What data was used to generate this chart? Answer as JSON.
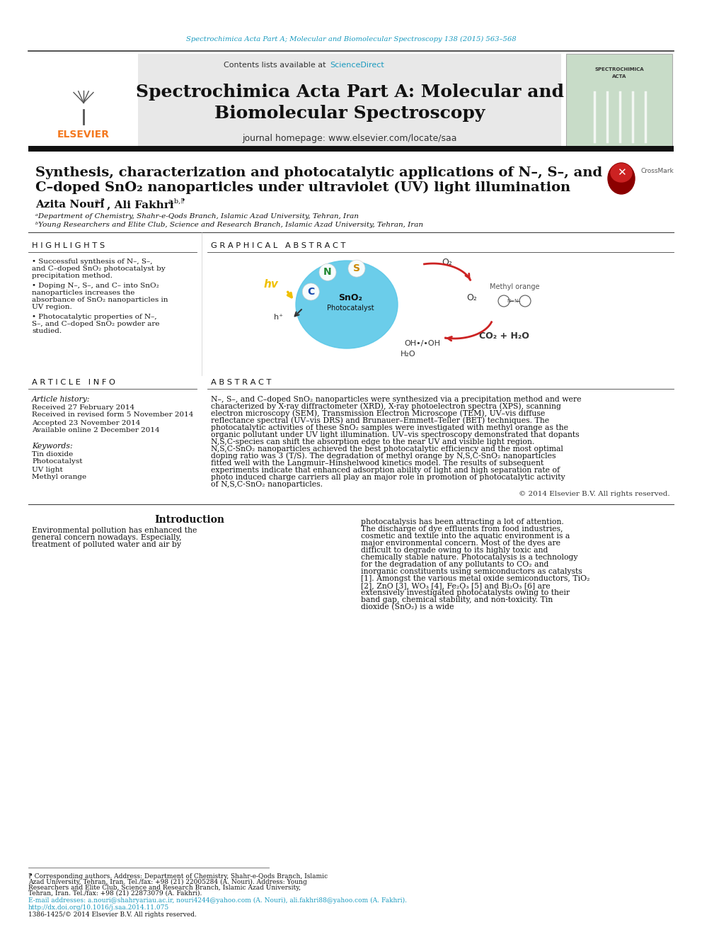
{
  "page_bg": "#ffffff",
  "top_journal_line": "Spectrochimica Acta Part A; Molecular and Biomolecular Spectroscopy 138 (2015) 563–568",
  "top_journal_color": "#1a9abf",
  "journal_header_bg": "#e8e8e8",
  "journal_title": "Spectrochimica Acta Part A: Molecular and\nBiomolecular Spectroscopy",
  "contents_line": "Contents lists available at ",
  "sciencedirect_text": "ScienceDirect",
  "sciencedirect_color": "#1a9abf",
  "journal_homepage": "journal homepage: www.elsevier.com/locate/saa",
  "elsevier_color": "#f47920",
  "paper_title_line1": "Synthesis, characterization and photocatalytic applications of N–, S–, and",
  "paper_title_line2": "C–doped SnO₂ nanoparticles under ultraviolet (UV) light illumination",
  "author1": "Azita Nouri",
  "author1_super": "a,⁋",
  "author2": ", Ali Fakhri",
  "author2_super": "a,b,⁋",
  "affil_a": "ᵃDepartment of Chemistry, Shahr-e-Qods Branch, Islamic Azad University, Tehran, Iran",
  "affil_b": "ᵇYoung Researchers and Elite Club, Science and Research Branch, Islamic Azad University, Tehran, Iran",
  "section_highlights": "H I G H L I G H T S",
  "section_graphical": "G R A P H I C A L   A B S T R A C T",
  "highlight1": "• Successful synthesis of N–, S–, and C–doped SnO₂ photocatalyst by precipitation method.",
  "highlight2": "• Doping N–, S–, and C– into SnO₂ nanoparticles increases the absorbance of SnO₂ nanoparticles in UV region.",
  "highlight3": "• Photocatalytic properties of N–, S–, and C–doped SnO₂ powder are studied.",
  "article_info_title": "A R T I C L E   I N F O",
  "article_history": "Article history:",
  "received": "Received 27 February 2014",
  "revised": "Received in revised form 5 November 2014",
  "accepted": "Accepted 23 November 2014",
  "available": "Available online 2 December 2014",
  "keywords_title": "Keywords:",
  "kw1": "Tin dioxide",
  "kw2": "Photocatalyst",
  "kw3": "UV light",
  "kw4": "Methyl orange",
  "abstract_title": "A B S T R A C T",
  "abstract_text": "N–, S–, and C–doped SnO₂ nanoparticles were synthesized via a precipitation method and were characterized by X-ray diffractometer (XRD), X-ray photoelectron spectra (XPS), scanning electron microscopy (SEM), Transmission Electron Microscope (TEM), UV–vis diffuse reflectance spectral (UV–vis DRS) and Brunauer–Emmett–Teller (BET) techniques. The photocatalytic activities of these SnO₂ samples were investigated with methyl orange as the organic pollutant under UV light illumination. UV–vis spectroscopy demonstrated that dopants N,S,C-species can shift the absorption edge to the near UV and visible light region. N,S,C-SnO₂ nanoparticles achieved the best photocatalytic efficiency and the most optimal doping ratio was 3 (T/S). The degradation of methyl orange by N,S,C-SnO₂ nanoparticles fitted well with the Langmuir–Hinshelwood kinetics model. The results of subsequent experiments indicate that enhanced adsorption ability of light and high separation rate of photo induced charge carriers all play an major role in promotion of photocatalytic activity of N,S,C-SnO₂ nanoparticles.",
  "copyright_text": "© 2014 Elsevier B.V. All rights reserved.",
  "intro_title": "Introduction",
  "intro_left": "    Environmental pollution has enhanced the general concern nowadays. Especially, treatment of polluted water and air by",
  "intro_right": "photocatalysis has been attracting a lot of attention. The discharge of dye effluents from food industries, cosmetic and textile into the aquatic environment is a major environmental concern. Most of the dyes are difficult to degrade owing to its highly toxic and chemically stable nature. Photocatalysis is a technology for the degradation of any pollutants to CO₂ and inorganic constituents using semiconductors as catalysts [1]. Amongst the various metal oxide semiconductors, TiO₂ [2], ZnO [3], WO₃ [4], Fe₂O₃ [5] and Bi₂O₃ [6] are extensively investigated photocatalysts owing to their band gap, chemical stability, and non-toxicity. Tin dioxide (SnO₂) is a wide",
  "footnote_star": "⁋ Corresponding authors. Address: Department of Chemistry, Shahr-e-Qods Branch, Islamic Azad University, Tehran, Iran. Tel./fax: +98 (21) 22005284 (A. Nouri). Address: Young Researchers and Elite Club, Science and Research Branch, Islamic Azad University, Tehran, Iran. Tel./fax: +98 (21) 22873079 (A. Fakhri).",
  "email_line": "E-mail addresses: a.nouri@shahryariau.ac.ir, nouri4244@yahoo.com (A. Nouri), ali.fakhri88@yahoo.com (A. Fakhri).",
  "doi_line": "http://dx.doi.org/10.1016/j.saa.2014.11.075",
  "issn_line": "1386-1425/© 2014 Elsevier B.V. All rights reserved.",
  "light_gray": "#e8e8e8",
  "cover_green": "#c8dcc8"
}
